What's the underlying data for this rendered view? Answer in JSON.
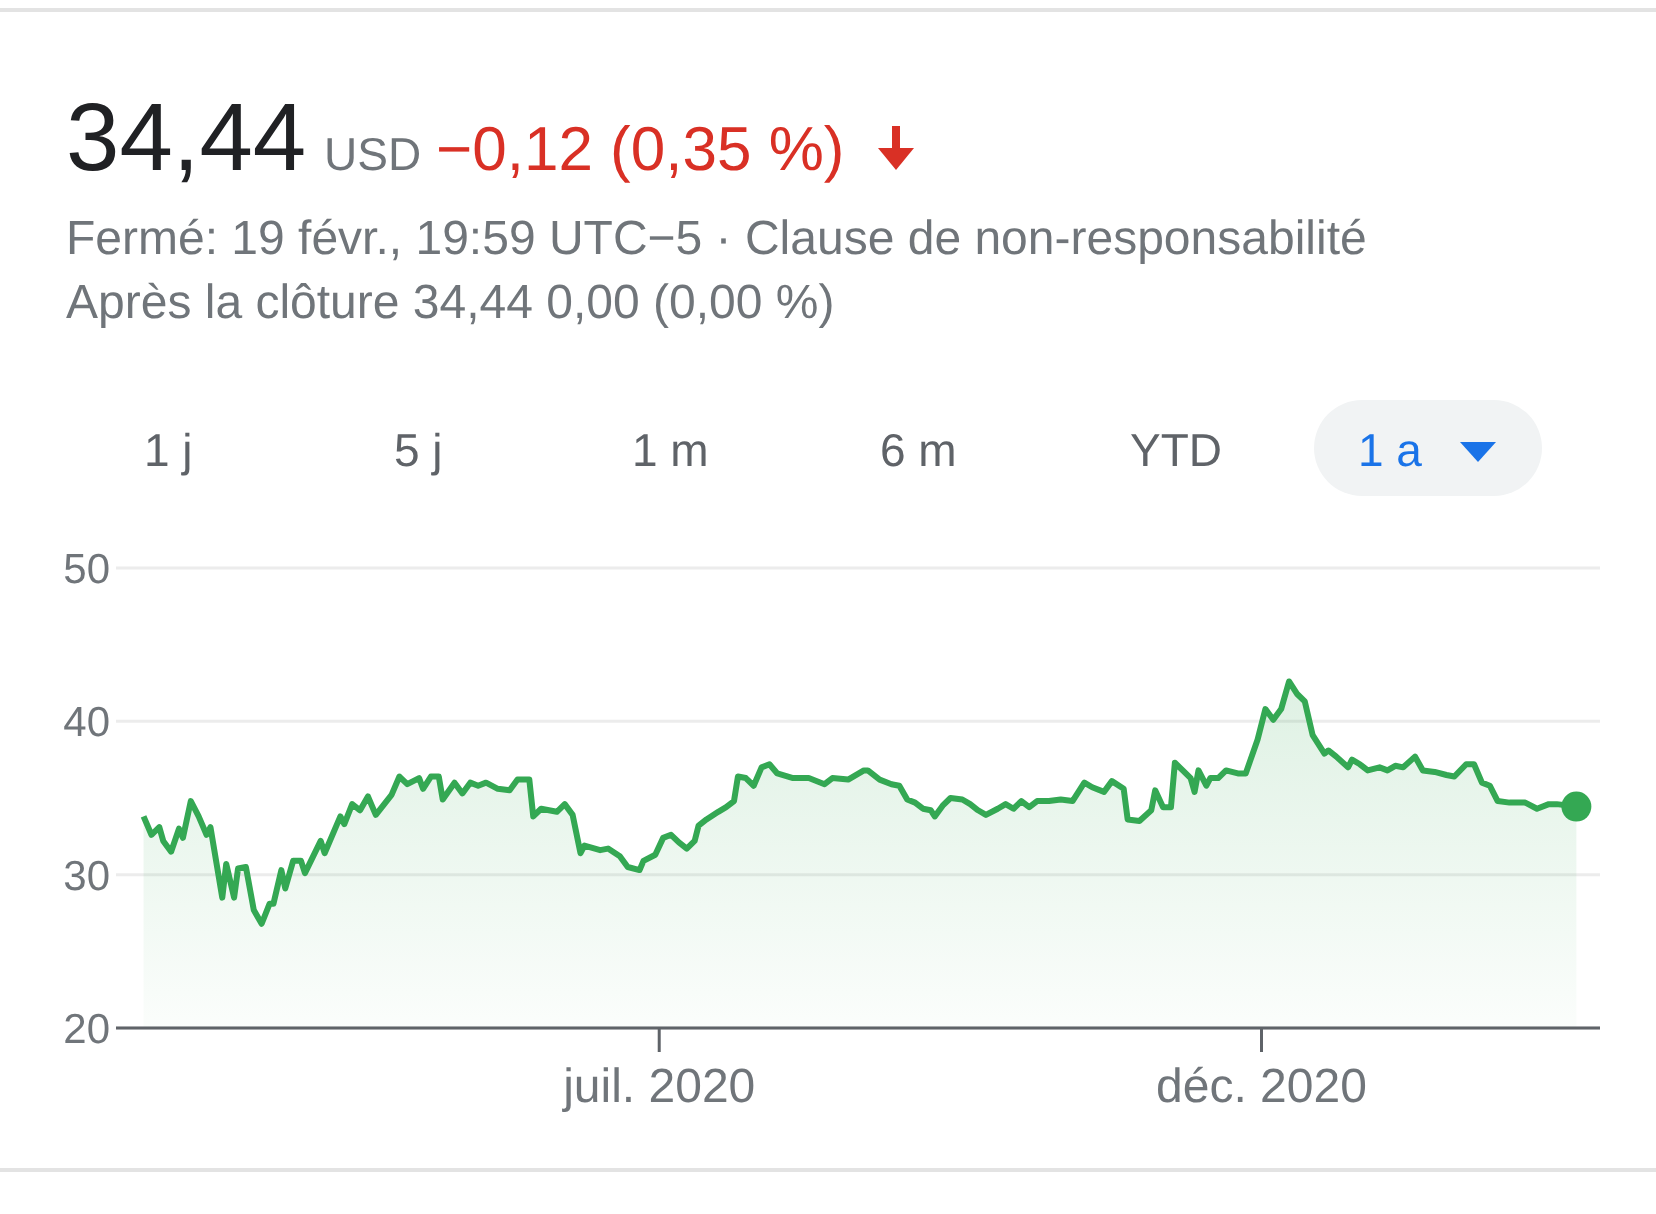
{
  "chart_data": {
    "type": "area",
    "title": "34,44",
    "annotations": [
      "USD",
      "−0,12 (0,35 %)",
      "Fermé: 19 févr., 19:59 UTC−5 · Clause de non-responsabilité",
      "Après la clôture 34,44 0,00 (0,00 %)",
      "1 j",
      "5 j",
      "1 m",
      "6 m",
      "YTD",
      "1 a"
    ],
    "x": [
      "2020-02-21",
      "2020-02-23",
      "2020-02-25",
      "2020-02-26",
      "2020-02-28",
      "2020-03-01",
      "2020-03-02",
      "2020-03-04",
      "2020-03-06",
      "2020-03-08",
      "2020-03-09",
      "2020-03-12",
      "2020-03-13",
      "2020-03-15",
      "2020-03-16",
      "2020-03-18",
      "2020-03-20",
      "2020-03-22",
      "2020-03-24",
      "2020-03-25",
      "2020-03-27",
      "2020-03-28",
      "2020-03-30",
      "2020-04-01",
      "2020-04-02",
      "2020-04-06",
      "2020-04-07",
      "2020-04-11",
      "2020-04-12",
      "2020-04-14",
      "2020-04-16",
      "2020-04-18",
      "2020-04-20",
      "2020-04-24",
      "2020-04-26",
      "2020-04-28",
      "2020-05-01",
      "2020-05-02",
      "2020-05-04",
      "2020-05-06",
      "2020-05-07",
      "2020-05-10",
      "2020-05-12",
      "2020-05-14",
      "2020-05-16",
      "2020-05-18",
      "2020-05-21",
      "2020-05-24",
      "2020-05-26",
      "2020-05-29",
      "2020-05-30",
      "2020-06-01",
      "2020-06-05",
      "2020-06-07",
      "2020-06-09",
      "2020-06-11",
      "2020-06-12",
      "2020-06-16",
      "2020-06-18",
      "2020-06-21",
      "2020-06-23",
      "2020-06-26",
      "2020-06-27",
      "2020-06-30",
      "2020-07-02",
      "2020-07-04",
      "2020-07-06",
      "2020-07-08",
      "2020-07-10",
      "2020-07-11",
      "2020-07-13",
      "2020-07-16",
      "2020-07-18",
      "2020-07-20",
      "2020-07-21",
      "2020-07-23",
      "2020-07-25",
      "2020-07-27",
      "2020-07-29",
      "2020-07-31",
      "2020-08-04",
      "2020-08-08",
      "2020-08-12",
      "2020-08-14",
      "2020-08-18",
      "2020-08-22",
      "2020-08-23",
      "2020-08-26",
      "2020-08-29",
      "2020-08-31",
      "2020-09-02",
      "2020-09-04",
      "2020-09-06",
      "2020-09-08",
      "2020-09-09",
      "2020-09-11",
      "2020-09-13",
      "2020-09-16",
      "2020-09-18",
      "2020-09-20",
      "2020-09-22",
      "2020-09-25",
      "2020-09-27",
      "2020-09-29",
      "2020-10-01",
      "2020-10-03",
      "2020-10-05",
      "2020-10-08",
      "2020-10-11",
      "2020-10-14",
      "2020-10-17",
      "2020-10-19",
      "2020-10-22",
      "2020-10-24",
      "2020-10-27",
      "2020-10-28",
      "2020-10-31",
      "2020-11-03",
      "2020-11-04",
      "2020-11-06",
      "2020-11-08",
      "2020-11-09",
      "2020-11-11",
      "2020-11-13",
      "2020-11-14",
      "2020-11-15",
      "2020-11-17",
      "2020-11-18",
      "2020-11-20",
      "2020-11-22",
      "2020-11-25",
      "2020-11-27",
      "2020-11-30",
      "2020-12-02",
      "2020-12-04",
      "2020-12-06",
      "2020-12-08",
      "2020-12-10",
      "2020-12-12",
      "2020-12-14",
      "2020-12-17",
      "2020-12-18",
      "2020-12-20",
      "2020-12-23",
      "2020-12-24",
      "2020-12-26",
      "2020-12-28",
      "2020-12-31",
      "2021-01-02",
      "2021-01-04",
      "2021-01-06",
      "2021-01-09",
      "2021-01-11",
      "2021-01-14",
      "2021-01-17",
      "2021-01-19",
      "2021-01-22",
      "2021-01-24",
      "2021-01-26",
      "2021-01-28",
      "2021-01-30",
      "2021-02-02",
      "2021-02-06",
      "2021-02-09",
      "2021-02-12",
      "2021-02-14",
      "2021-02-19"
    ],
    "series": [
      {
        "color": "#34a853",
        "values": [
          33.8,
          32.6,
          33.1,
          32.2,
          31.5,
          33.0,
          32.4,
          34.8,
          33.8,
          32.6,
          33.1,
          28.5,
          30.7,
          28.5,
          30.4,
          30.5,
          27.7,
          26.8,
          28.1,
          28.1,
          30.3,
          29.1,
          30.9,
          30.9,
          30.1,
          32.2,
          31.4,
          33.8,
          33.3,
          34.6,
          34.2,
          35.1,
          33.9,
          35.2,
          36.4,
          35.9,
          36.3,
          35.6,
          36.4,
          36.4,
          34.9,
          36.0,
          35.3,
          36.0,
          35.8,
          36.0,
          35.6,
          35.5,
          36.2,
          36.2,
          33.8,
          34.3,
          34.1,
          34.6,
          33.9,
          31.4,
          31.9,
          31.6,
          31.7,
          31.2,
          30.5,
          30.3,
          30.9,
          31.3,
          32.4,
          32.6,
          32.1,
          31.7,
          32.2,
          33.2,
          33.6,
          34.1,
          34.4,
          34.8,
          36.4,
          36.3,
          35.8,
          37.0,
          37.2,
          36.6,
          36.3,
          36.3,
          35.9,
          36.3,
          36.2,
          36.8,
          36.8,
          36.2,
          35.9,
          35.8,
          34.9,
          34.7,
          34.3,
          34.2,
          33.8,
          34.5,
          35.0,
          34.9,
          34.6,
          34.2,
          33.9,
          34.3,
          34.6,
          34.3,
          34.8,
          34.4,
          34.8,
          34.8,
          34.9,
          34.8,
          36.0,
          35.7,
          35.4,
          36.1,
          35.6,
          33.6,
          33.5,
          34.2,
          35.5,
          34.4,
          34.4,
          37.3,
          36.8,
          36.3,
          35.4,
          36.8,
          35.8,
          36.3,
          36.3,
          36.8,
          36.6,
          36.6,
          38.8,
          40.8,
          40.1,
          40.8,
          42.6,
          41.8,
          41.3,
          39.1,
          37.9,
          38.1,
          37.7,
          37.0,
          37.5,
          37.2,
          36.8,
          37.0,
          36.8,
          37.1,
          37.0,
          37.7,
          36.8,
          36.7,
          36.5,
          36.4,
          37.2,
          37.2,
          36.0,
          35.8,
          34.8,
          34.7,
          34.7,
          34.3,
          34.6,
          34.6,
          34.44
        ]
      },
      {
        "type": "scatter",
        "x": [
          "2021-02-19"
        ],
        "values": [
          34.44
        ],
        "color": "#34a853",
        "marker": "circle"
      }
    ],
    "xlim": [
      "2020-02-14",
      "2021-02-25"
    ],
    "xticks": [
      {
        "value": "2020-07-01",
        "label": "juil. 2020"
      },
      {
        "value": "2020-12-01",
        "label": "déc. 2020"
      }
    ],
    "ylim": [
      20,
      50
    ],
    "yticks": [
      20,
      30,
      40,
      50
    ],
    "grid": "y"
  }
}
